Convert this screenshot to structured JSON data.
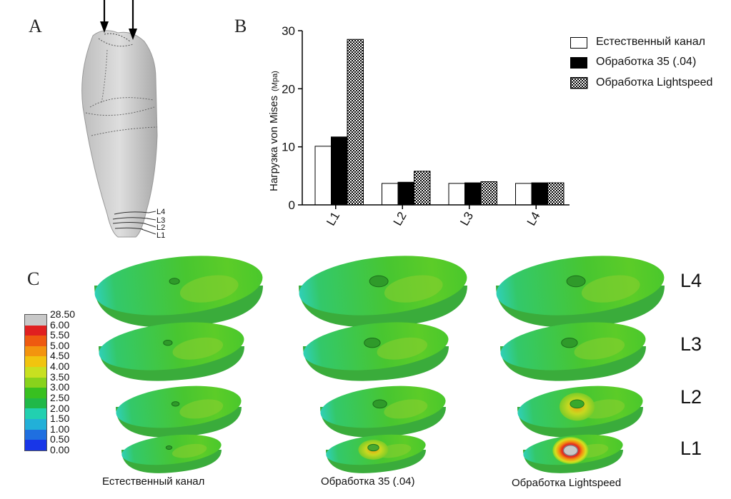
{
  "panels": {
    "a": "A",
    "b": "B",
    "c": "C"
  },
  "tooth_levels": [
    "L4",
    "L3",
    "L2",
    "L1"
  ],
  "chart_data": {
    "type": "bar",
    "ylabel": "Нагрузка von Mises",
    "ylabel_unit": "(Mpa)",
    "categories": [
      "L1",
      "L2",
      "L3",
      "L4"
    ],
    "ylim": [
      0,
      30
    ],
    "yticks": [
      0,
      10,
      20,
      30
    ],
    "series": [
      {
        "name": "Естественный канал",
        "values": [
          10.1,
          3.7,
          3.7,
          3.7
        ],
        "fill": "#ffffff"
      },
      {
        "name": "Обработка 35 (.04)",
        "values": [
          11.7,
          3.9,
          3.8,
          3.8
        ],
        "fill": "#000000"
      },
      {
        "name": "Обработка Lightspeed",
        "values": [
          28.5,
          5.8,
          4.0,
          3.8
        ],
        "fill": "checker"
      }
    ],
    "legend_position": "right"
  },
  "colorbar": {
    "ticks": [
      "28.50",
      "6.00",
      "5.50",
      "5.00",
      "4.50",
      "4.00",
      "3.50",
      "3.00",
      "2.50",
      "2.00",
      "1.50",
      "1.00",
      "0.50",
      "0.00"
    ],
    "colors": [
      "#c8c8c8",
      "#e02020",
      "#ee5a10",
      "#f3940e",
      "#f1c40f",
      "#c8e020",
      "#88d21c",
      "#38c020",
      "#20b848",
      "#22d0b0",
      "#22b0d8",
      "#1f6fe0",
      "#1836e8"
    ]
  },
  "section_rows": [
    "L4",
    "L3",
    "L2",
    "L1"
  ],
  "section_captions": [
    "Естественный канал",
    "Обработка 35 (.04)",
    "Обработка Lightspeed"
  ]
}
